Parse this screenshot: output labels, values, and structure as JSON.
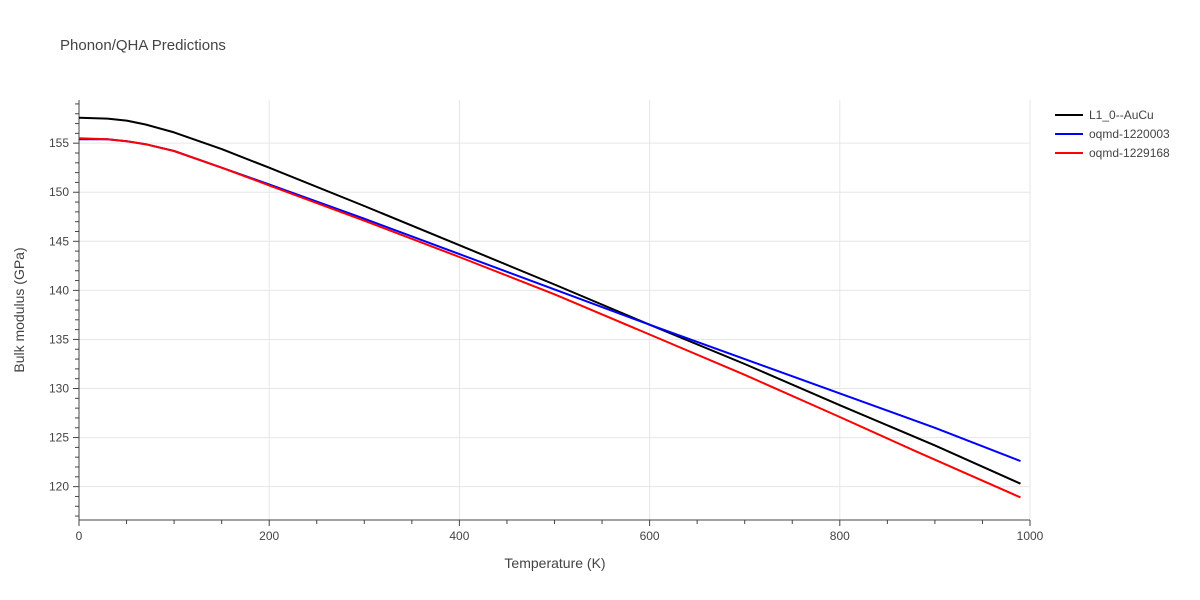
{
  "chart_data": {
    "type": "line",
    "title": "Phonon/QHA Predictions",
    "xlabel": "Temperature (K)",
    "ylabel": "Bulk modulus (GPa)",
    "xlim": [
      0,
      1000
    ],
    "ylim": [
      116.6,
      159.4
    ],
    "xticks": [
      0,
      200,
      400,
      600,
      800,
      1000
    ],
    "yticks": [
      120,
      125,
      130,
      135,
      140,
      145,
      150,
      155
    ],
    "grid": true,
    "legend_position": "top-right",
    "series": [
      {
        "name": "L1_0--AuCu",
        "color": "#000000",
        "x": [
          0,
          30,
          50,
          70,
          100,
          150,
          200,
          300,
          400,
          500,
          600,
          700,
          800,
          900,
          990
        ],
        "y": [
          157.6,
          157.5,
          157.3,
          156.9,
          156.1,
          154.4,
          152.5,
          148.6,
          144.6,
          140.6,
          136.5,
          132.5,
          128.3,
          124.2,
          120.3
        ]
      },
      {
        "name": "oqmd-1220003",
        "color": "#0000ff",
        "x": [
          0,
          30,
          50,
          70,
          100,
          150,
          200,
          300,
          400,
          500,
          600,
          700,
          800,
          900,
          990
        ],
        "y": [
          155.4,
          155.4,
          155.2,
          154.9,
          154.2,
          152.5,
          150.8,
          147.3,
          143.7,
          140.1,
          136.5,
          133.0,
          129.5,
          126.0,
          122.6
        ]
      },
      {
        "name": "oqmd-1229168",
        "color": "#ff0000",
        "x": [
          0,
          30,
          50,
          70,
          100,
          150,
          200,
          300,
          400,
          500,
          600,
          700,
          800,
          880,
          990
        ],
        "y": [
          155.5,
          155.4,
          155.2,
          154.9,
          154.2,
          152.5,
          150.7,
          147.1,
          143.4,
          139.6,
          135.5,
          131.4,
          127.1,
          123.6,
          118.9
        ]
      }
    ]
  }
}
